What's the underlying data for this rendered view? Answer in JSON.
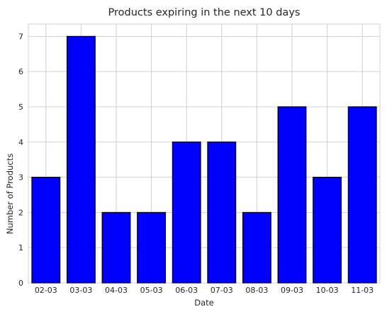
{
  "chart_data": {
    "type": "bar",
    "title": "Products expiring in the next 10 days",
    "xlabel": "Date",
    "ylabel": "Number of Products",
    "categories": [
      "02-03",
      "03-03",
      "04-03",
      "05-03",
      "06-03",
      "07-03",
      "08-03",
      "09-03",
      "10-03",
      "11-03"
    ],
    "values": [
      3,
      7,
      2,
      2,
      4,
      4,
      2,
      5,
      3,
      5
    ],
    "ylim": [
      0,
      7.35
    ],
    "yticks": [
      0,
      1,
      2,
      3,
      4,
      5,
      6,
      7
    ],
    "grid": true,
    "bar_color": "#0000ff",
    "edge_color": "#000000"
  }
}
